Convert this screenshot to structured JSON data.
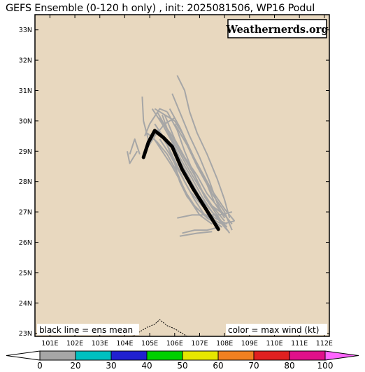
{
  "title": "GEFS Ensemble (0-120 h only) , init: 2025081506, WP16 Podul",
  "watermark": "Weathernerds.org",
  "map": {
    "lon_range": [
      100.4,
      112.2
    ],
    "lat_range": [
      22.9,
      33.5
    ],
    "lat_ticks": [
      "33N",
      "32N",
      "31N",
      "30N",
      "29N",
      "28N",
      "27N",
      "26N",
      "25N",
      "24N",
      "23N"
    ],
    "lat_values": [
      33,
      32,
      31,
      30,
      29,
      28,
      27,
      26,
      25,
      24,
      23
    ],
    "lon_ticks": [
      "101E",
      "102E",
      "103E",
      "104E",
      "105E",
      "106E",
      "107E",
      "108E",
      "109E",
      "110E",
      "111E",
      "112E"
    ],
    "lon_values": [
      101,
      102,
      103,
      104,
      105,
      106,
      107,
      108,
      109,
      110,
      111,
      112
    ],
    "land_color": "#e8d8bf",
    "border_color": "#000000"
  },
  "legend_notes": {
    "left": "black line = ens mean",
    "right": "color = max wind (kt)"
  },
  "colorbar": {
    "labels": [
      "0",
      "20",
      "30",
      "40",
      "50",
      "60",
      "70",
      "80",
      "100"
    ],
    "colors": [
      "#ffffff",
      "#a6a6a6",
      "#00c0c0",
      "#2020d0",
      "#00d000",
      "#e6e600",
      "#f08020",
      "#e02020",
      "#e0108a",
      "#ff66ff"
    ]
  },
  "ens_mean": {
    "color": "#000000",
    "points": [
      [
        104.75,
        28.8
      ],
      [
        104.95,
        29.3
      ],
      [
        105.2,
        29.68
      ],
      [
        105.55,
        29.45
      ],
      [
        105.9,
        29.15
      ],
      [
        106.3,
        28.4
      ],
      [
        106.75,
        27.75
      ],
      [
        107.25,
        27.1
      ],
      [
        107.75,
        26.43
      ]
    ]
  },
  "members": {
    "color": "#a6a6a6",
    "tracks": [
      [
        [
          105.0,
          29.2
        ],
        [
          104.75,
          30.0
        ],
        [
          104.7,
          30.8
        ]
      ],
      [
        [
          104.5,
          29.0
        ],
        [
          104.2,
          28.6
        ],
        [
          104.1,
          29.0
        ]
      ],
      [
        [
          104.6,
          28.9
        ],
        [
          104.4,
          29.4
        ],
        [
          104.2,
          28.9
        ]
      ],
      [
        [
          105.5,
          30.2
        ],
        [
          105.8,
          29.5
        ],
        [
          106.2,
          28.8
        ],
        [
          106.7,
          28.1
        ],
        [
          107.1,
          27.5
        ],
        [
          107.5,
          27.0
        ],
        [
          108.1,
          26.5
        ]
      ],
      [
        [
          105.3,
          30.3
        ],
        [
          105.7,
          29.7
        ],
        [
          106.1,
          29.1
        ],
        [
          106.5,
          28.5
        ],
        [
          107.0,
          27.8
        ],
        [
          107.4,
          27.3
        ],
        [
          108.0,
          26.7
        ]
      ],
      [
        [
          105.6,
          30.2
        ],
        [
          106.0,
          29.4
        ],
        [
          106.4,
          28.8
        ],
        [
          106.9,
          28.2
        ],
        [
          107.3,
          27.6
        ],
        [
          107.8,
          27.1
        ],
        [
          108.3,
          26.6
        ]
      ],
      [
        [
          106.0,
          30.0
        ],
        [
          106.3,
          29.6
        ],
        [
          106.7,
          28.9
        ],
        [
          107.1,
          28.3
        ],
        [
          107.5,
          27.7
        ],
        [
          108.0,
          27.1
        ],
        [
          108.4,
          26.7
        ]
      ],
      [
        [
          105.1,
          30.4
        ],
        [
          105.5,
          29.9
        ],
        [
          105.9,
          29.3
        ],
        [
          106.2,
          28.7
        ],
        [
          106.6,
          28.1
        ],
        [
          107.0,
          27.5
        ],
        [
          107.5,
          27.0
        ],
        [
          108.1,
          26.4
        ]
      ],
      [
        [
          105.8,
          30.4
        ],
        [
          106.2,
          29.8
        ],
        [
          106.6,
          29.1
        ],
        [
          107.0,
          28.4
        ],
        [
          107.5,
          27.6
        ],
        [
          108.0,
          27.0
        ],
        [
          108.3,
          26.4
        ]
      ],
      [
        [
          105.4,
          30.1
        ],
        [
          105.9,
          29.5
        ],
        [
          106.3,
          28.9
        ],
        [
          106.8,
          28.2
        ],
        [
          107.2,
          27.5
        ],
        [
          107.7,
          26.9
        ],
        [
          108.2,
          26.3
        ]
      ],
      [
        [
          105.2,
          29.9
        ],
        [
          105.6,
          29.4
        ],
        [
          106.0,
          28.7
        ],
        [
          106.4,
          28.0
        ],
        [
          106.8,
          27.4
        ],
        [
          107.2,
          26.9
        ],
        [
          107.9,
          26.5
        ]
      ],
      [
        [
          106.1,
          31.5
        ],
        [
          106.4,
          31.0
        ],
        [
          106.6,
          30.3
        ],
        [
          106.9,
          29.6
        ],
        [
          107.3,
          28.9
        ],
        [
          107.7,
          28.1
        ],
        [
          108.0,
          27.4
        ],
        [
          108.2,
          26.8
        ]
      ],
      [
        [
          105.9,
          30.9
        ],
        [
          106.2,
          30.3
        ],
        [
          106.6,
          29.5
        ],
        [
          107.0,
          28.8
        ],
        [
          107.4,
          28.0
        ],
        [
          107.7,
          27.3
        ],
        [
          108.0,
          26.8
        ]
      ],
      [
        [
          104.9,
          29.6
        ],
        [
          105.3,
          29.3
        ],
        [
          105.7,
          28.9
        ],
        [
          106.1,
          28.3
        ],
        [
          106.4,
          27.7
        ],
        [
          106.8,
          27.2
        ],
        [
          107.3,
          26.8
        ],
        [
          107.9,
          26.5
        ]
      ],
      [
        [
          105.1,
          29.5
        ],
        [
          105.5,
          29.0
        ],
        [
          105.9,
          28.5
        ],
        [
          106.3,
          27.9
        ],
        [
          106.6,
          27.4
        ],
        [
          107.0,
          26.9
        ],
        [
          107.5,
          26.6
        ]
      ],
      [
        [
          105.7,
          30.3
        ],
        [
          106.1,
          29.7
        ],
        [
          106.4,
          29.0
        ],
        [
          106.7,
          28.4
        ],
        [
          107.1,
          27.7
        ],
        [
          107.5,
          27.2
        ],
        [
          108.0,
          26.9
        ]
      ],
      [
        [
          104.8,
          29.5
        ],
        [
          105.0,
          29.9
        ],
        [
          105.4,
          30.4
        ],
        [
          105.7,
          30.3
        ]
      ],
      [
        [
          105.3,
          29.7
        ],
        [
          105.7,
          29.2
        ],
        [
          106.0,
          28.6
        ],
        [
          106.2,
          28.0
        ],
        [
          106.5,
          27.5
        ],
        [
          106.9,
          27.1
        ],
        [
          107.4,
          26.8
        ],
        [
          107.9,
          26.6
        ],
        [
          108.4,
          26.7
        ]
      ],
      [
        [
          106.3,
          26.3
        ],
        [
          106.8,
          26.4
        ],
        [
          107.3,
          26.4
        ],
        [
          107.8,
          26.5
        ]
      ],
      [
        [
          106.2,
          26.2
        ],
        [
          106.9,
          26.3
        ],
        [
          107.5,
          26.35
        ]
      ],
      [
        [
          106.1,
          26.8
        ],
        [
          106.7,
          26.9
        ],
        [
          107.3,
          26.9
        ],
        [
          107.8,
          26.9
        ],
        [
          108.3,
          27.0
        ]
      ],
      [
        [
          105.4,
          29.4
        ],
        [
          105.8,
          28.9
        ],
        [
          106.2,
          28.3
        ],
        [
          106.6,
          27.7
        ],
        [
          107.1,
          27.2
        ],
        [
          107.6,
          26.8
        ],
        [
          108.1,
          26.6
        ]
      ],
      [
        [
          106.0,
          29.9
        ],
        [
          106.5,
          29.2
        ],
        [
          106.9,
          28.5
        ],
        [
          107.3,
          27.9
        ],
        [
          107.6,
          27.3
        ],
        [
          108.0,
          26.8
        ]
      ],
      [
        [
          104.9,
          29.1
        ],
        [
          105.2,
          29.5
        ],
        [
          105.6,
          29.9
        ],
        [
          106.0,
          30.1
        ]
      ],
      [
        [
          105.2,
          30.4
        ],
        [
          105.6,
          30.2
        ],
        [
          106.0,
          30.0
        ]
      ]
    ]
  }
}
